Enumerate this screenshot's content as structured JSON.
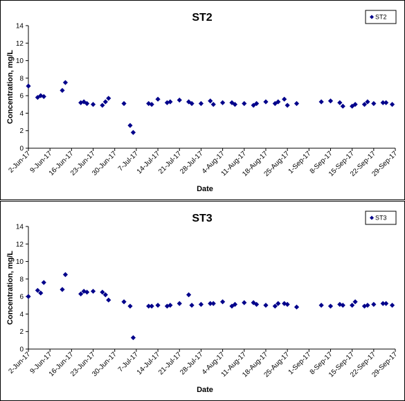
{
  "chart_data": [
    {
      "type": "scatter",
      "title": "ST2",
      "xlabel": "Date",
      "ylabel": "Concentration, mg/L",
      "ylim": [
        0,
        14
      ],
      "yticks": [
        "0",
        "2",
        "4",
        "6",
        "8",
        "10",
        "12",
        "14"
      ],
      "xlim": [
        "2017-06-02",
        "2017-09-29"
      ],
      "xticks": [
        "2-Jun-17",
        "9-Jun-17",
        "16-Jun-17",
        "23-Jun-17",
        "30-Jun-17",
        "7-Jul-17",
        "14-Jul-17",
        "21-Jul-17",
        "28-Jul-17",
        "4-Aug-17",
        "11-Aug-17",
        "18-Aug-17",
        "25-Aug-17",
        "1-Sep-17",
        "8-Sep-17",
        "15-Sep-17",
        "22-Sep-17",
        "29-Sep-17"
      ],
      "grid": false,
      "legend_position": "top-right",
      "color": "#00008B",
      "series": [
        {
          "name": "ST2",
          "points": [
            [
              "2017-06-02",
              7.1
            ],
            [
              "2017-06-05",
              5.8
            ],
            [
              "2017-06-06",
              6.0
            ],
            [
              "2017-06-07",
              5.9
            ],
            [
              "2017-06-13",
              6.6
            ],
            [
              "2017-06-14",
              7.5
            ],
            [
              "2017-06-19",
              5.2
            ],
            [
              "2017-06-20",
              5.3
            ],
            [
              "2017-06-21",
              5.1
            ],
            [
              "2017-06-23",
              5.0
            ],
            [
              "2017-06-26",
              4.9
            ],
            [
              "2017-06-27",
              5.3
            ],
            [
              "2017-06-28",
              5.7
            ],
            [
              "2017-07-03",
              5.1
            ],
            [
              "2017-07-05",
              2.6
            ],
            [
              "2017-07-06",
              1.8
            ],
            [
              "2017-07-11",
              5.1
            ],
            [
              "2017-07-12",
              5.0
            ],
            [
              "2017-07-14",
              5.6
            ],
            [
              "2017-07-17",
              5.2
            ],
            [
              "2017-07-18",
              5.3
            ],
            [
              "2017-07-21",
              5.5
            ],
            [
              "2017-07-24",
              5.3
            ],
            [
              "2017-07-25",
              5.1
            ],
            [
              "2017-07-28",
              5.1
            ],
            [
              "2017-07-31",
              5.4
            ],
            [
              "2017-08-01",
              5.0
            ],
            [
              "2017-08-04",
              5.2
            ],
            [
              "2017-08-07",
              5.2
            ],
            [
              "2017-08-08",
              5.0
            ],
            [
              "2017-08-11",
              5.1
            ],
            [
              "2017-08-14",
              4.9
            ],
            [
              "2017-08-15",
              5.1
            ],
            [
              "2017-08-18",
              5.3
            ],
            [
              "2017-08-21",
              5.1
            ],
            [
              "2017-08-22",
              5.3
            ],
            [
              "2017-08-24",
              5.6
            ],
            [
              "2017-08-25",
              4.9
            ],
            [
              "2017-08-28",
              5.1
            ],
            [
              "2017-09-05",
              5.3
            ],
            [
              "2017-09-08",
              5.4
            ],
            [
              "2017-09-11",
              5.2
            ],
            [
              "2017-09-12",
              4.8
            ],
            [
              "2017-09-15",
              4.8
            ],
            [
              "2017-09-16",
              5.0
            ],
            [
              "2017-09-19",
              5.0
            ],
            [
              "2017-09-20",
              5.3
            ],
            [
              "2017-09-22",
              5.1
            ],
            [
              "2017-09-25",
              5.2
            ],
            [
              "2017-09-26",
              5.2
            ],
            [
              "2017-09-28",
              5.0
            ]
          ]
        }
      ]
    },
    {
      "type": "scatter",
      "title": "ST3",
      "xlabel": "Date",
      "ylabel": "Concentration, mg/L",
      "ylim": [
        0,
        14
      ],
      "yticks": [
        "0",
        "2",
        "4",
        "6",
        "8",
        "10",
        "12",
        "14"
      ],
      "xlim": [
        "2017-06-02",
        "2017-09-29"
      ],
      "xticks": [
        "2-Jun-17",
        "9-Jun-17",
        "16-Jun-17",
        "23-Jun-17",
        "30-Jun-17",
        "7-Jul-17",
        "14-Jul-17",
        "21-Jul-17",
        "28-Jul-17",
        "4-Aug-17",
        "11-Aug-17",
        "18-Aug-17",
        "25-Aug-17",
        "1-Sep-17",
        "8-Sep-17",
        "15-Sep-17",
        "22-Sep-17",
        "29-Sep-17"
      ],
      "grid": false,
      "legend_position": "top-right",
      "color": "#00008B",
      "series": [
        {
          "name": "ST3",
          "points": [
            [
              "2017-06-02",
              6.0
            ],
            [
              "2017-06-05",
              6.7
            ],
            [
              "2017-06-06",
              6.4
            ],
            [
              "2017-06-07",
              7.6
            ],
            [
              "2017-06-13",
              6.8
            ],
            [
              "2017-06-14",
              8.5
            ],
            [
              "2017-06-19",
              6.3
            ],
            [
              "2017-06-20",
              6.6
            ],
            [
              "2017-06-21",
              6.5
            ],
            [
              "2017-06-23",
              6.6
            ],
            [
              "2017-06-26",
              6.5
            ],
            [
              "2017-06-27",
              6.2
            ],
            [
              "2017-06-28",
              5.6
            ],
            [
              "2017-07-03",
              5.4
            ],
            [
              "2017-07-05",
              4.9
            ],
            [
              "2017-07-06",
              1.3
            ],
            [
              "2017-07-11",
              4.9
            ],
            [
              "2017-07-12",
              4.9
            ],
            [
              "2017-07-14",
              5.0
            ],
            [
              "2017-07-17",
              4.9
            ],
            [
              "2017-07-18",
              5.0
            ],
            [
              "2017-07-21",
              5.2
            ],
            [
              "2017-07-24",
              6.2
            ],
            [
              "2017-07-25",
              5.0
            ],
            [
              "2017-07-28",
              5.1
            ],
            [
              "2017-07-31",
              5.2
            ],
            [
              "2017-08-01",
              5.2
            ],
            [
              "2017-08-04",
              5.4
            ],
            [
              "2017-08-07",
              4.9
            ],
            [
              "2017-08-08",
              5.1
            ],
            [
              "2017-08-11",
              5.3
            ],
            [
              "2017-08-14",
              5.3
            ],
            [
              "2017-08-15",
              5.1
            ],
            [
              "2017-08-18",
              5.0
            ],
            [
              "2017-08-21",
              4.9
            ],
            [
              "2017-08-22",
              5.2
            ],
            [
              "2017-08-24",
              5.2
            ],
            [
              "2017-08-25",
              5.1
            ],
            [
              "2017-08-28",
              4.8
            ],
            [
              "2017-09-05",
              5.0
            ],
            [
              "2017-09-08",
              4.9
            ],
            [
              "2017-09-11",
              5.1
            ],
            [
              "2017-09-12",
              5.0
            ],
            [
              "2017-09-15",
              5.0
            ],
            [
              "2017-09-16",
              5.4
            ],
            [
              "2017-09-19",
              4.9
            ],
            [
              "2017-09-20",
              5.0
            ],
            [
              "2017-09-22",
              5.1
            ],
            [
              "2017-09-25",
              5.2
            ],
            [
              "2017-09-26",
              5.2
            ],
            [
              "2017-09-28",
              5.0
            ]
          ]
        }
      ]
    }
  ]
}
